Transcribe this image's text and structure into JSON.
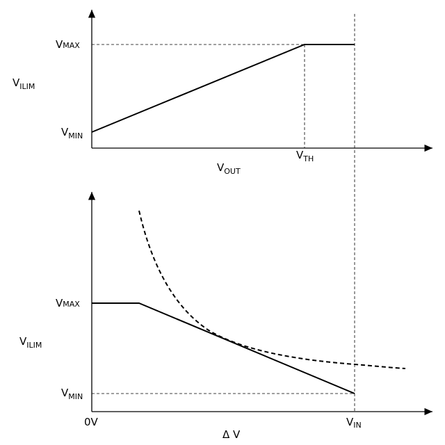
{
  "top": {
    "y_axis_label": {
      "main": "V",
      "sub": "ILIM"
    },
    "vmax": {
      "main": "V",
      "sub": "MAX"
    },
    "vmin": {
      "main": "V",
      "sub": "MIN"
    },
    "x_axis_label": {
      "main": "V",
      "sub": "OUT"
    },
    "vth": {
      "main": "V",
      "sub": "TH"
    }
  },
  "bottom": {
    "y_axis_label": {
      "main": "V",
      "sub": "ILIM"
    },
    "vmax": {
      "main": "V",
      "sub": "MAX"
    },
    "vmin": {
      "main": "V",
      "sub": "MIN"
    },
    "origin": "0V",
    "vin": {
      "main": "V",
      "sub": "IN"
    },
    "x_axis_label": "Δ V"
  }
}
